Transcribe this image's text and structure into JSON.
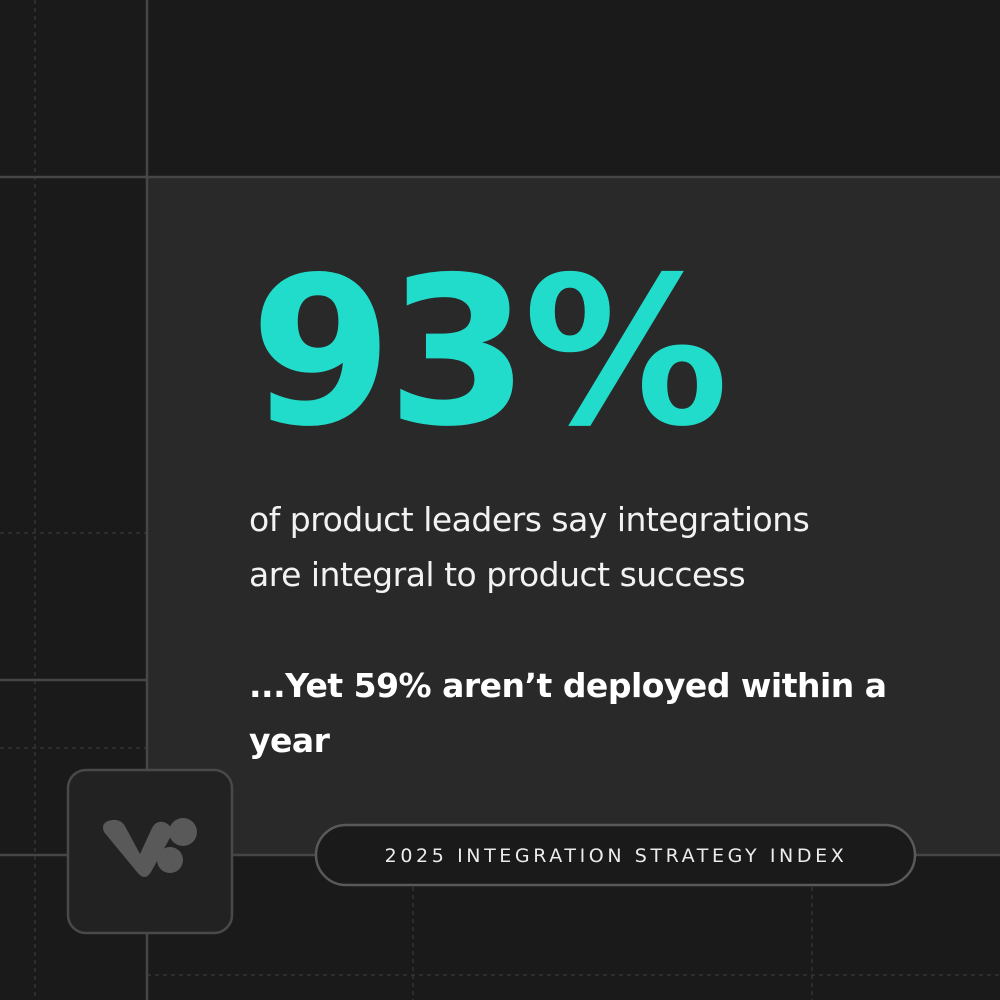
{
  "stat": {
    "value": "93%",
    "description_lines": [
      "of product leaders say integrations",
      "are integral to product success"
    ]
  },
  "highlight_lines": [
    "...Yet 59% aren’t deployed within a",
    "year"
  ],
  "badge": {
    "label": "2025 INTEGRATION STRATEGY INDEX"
  }
}
